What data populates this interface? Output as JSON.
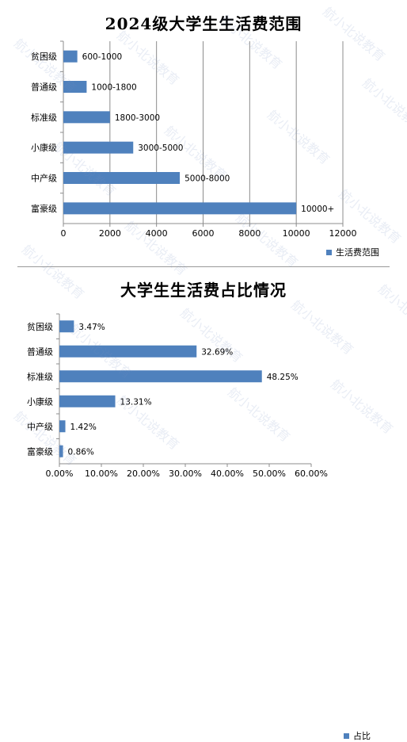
{
  "colors": {
    "bar": "#4f81bd",
    "grid": "#8c8c8c",
    "axis": "#8c8c8c",
    "text": "#000000"
  },
  "watermark": "航小北说教育",
  "chart_data": [
    {
      "type": "bar",
      "orientation": "horizontal",
      "title": "2024级大学生生活费范围",
      "categories": [
        "贫困级",
        "普通级",
        "标准级",
        "小康级",
        "中产级",
        "富豪级"
      ],
      "series": [
        {
          "name": "生活费范围",
          "values": [
            600,
            1000,
            2000,
            3000,
            5000,
            10000
          ],
          "labels": [
            "600-1000",
            "1000-1800",
            "1800-3000",
            "3000-5000",
            "5000-8000",
            "10000+"
          ]
        }
      ],
      "xlim": [
        0,
        12000
      ],
      "xticks": [
        "0",
        "2000",
        "4000",
        "6000",
        "8000",
        "10000",
        "12000"
      ],
      "grid": "vertical",
      "legend": "bottom-right"
    },
    {
      "type": "bar",
      "orientation": "horizontal",
      "title": "大学生生活费占比情况",
      "categories": [
        "贫困级",
        "普通级",
        "标准级",
        "小康级",
        "中产级",
        "富豪级"
      ],
      "series": [
        {
          "name": "占比",
          "values": [
            3.47,
            32.69,
            48.25,
            13.31,
            1.42,
            0.86
          ],
          "labels": [
            "3.47%",
            "32.69%",
            "48.25%",
            "13.31%",
            "1.42%",
            "0.86%"
          ]
        }
      ],
      "xlim": [
        0,
        60
      ],
      "xticks": [
        "0.00%",
        "10.00%",
        "20.00%",
        "30.00%",
        "40.00%",
        "50.00%",
        "60.00%"
      ],
      "grid": "none",
      "legend": "bottom-right"
    }
  ]
}
